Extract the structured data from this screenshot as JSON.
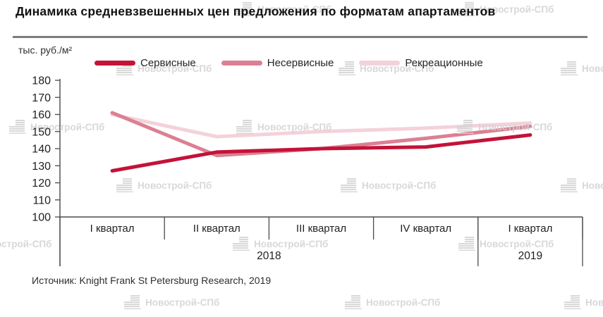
{
  "title": "Динамика средневзвешенных цен предложения по форматам апартаментов",
  "y_axis_unit": "тыс. руб./м²",
  "source": "Источник: Knight Frank St Petersburg Research, 2019",
  "watermark_text": "Новострой-СПб",
  "chart_data": {
    "type": "line",
    "title": "Динамика средневзвешенных цен предложения по форматам апартаментов",
    "ylabel": "тыс. руб./м²",
    "xlabel": "",
    "ylim": [
      100,
      180
    ],
    "ytick_step": 10,
    "grid": false,
    "legend_position": "top",
    "categories": [
      "I квартал",
      "II квартал",
      "III квартал",
      "IV квартал",
      "I квартал"
    ],
    "category_groups": [
      {
        "label": "2018",
        "span": 4
      },
      {
        "label": "2019",
        "span": 1
      }
    ],
    "series": [
      {
        "name": "Сервисные",
        "color": "#c41239",
        "values": [
          127,
          138,
          140,
          141,
          148
        ]
      },
      {
        "name": "Несервисные",
        "color": "#db8092",
        "values": [
          161,
          136,
          140,
          146,
          153
        ]
      },
      {
        "name": "Рекреационные",
        "color": "#f4d2d9",
        "values": [
          160,
          147,
          150,
          152,
          155
        ]
      }
    ]
  }
}
